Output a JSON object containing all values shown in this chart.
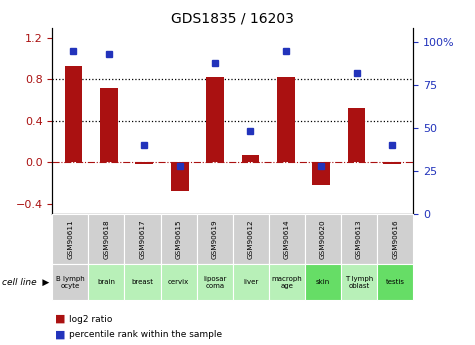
{
  "title": "GDS1835 / 16203",
  "gsm_labels": [
    "GSM90611",
    "GSM90618",
    "GSM90617",
    "GSM90615",
    "GSM90619",
    "GSM90612",
    "GSM90614",
    "GSM90620",
    "GSM90613",
    "GSM90616"
  ],
  "cell_labels": [
    "B lymph\nocyte",
    "brain",
    "breast",
    "cervix",
    "liposar\ncoma",
    "liver",
    "macroph\nage",
    "skin",
    "T lymph\noblast",
    "testis"
  ],
  "cell_colors": [
    "#d0d0d0",
    "#b8f0b8",
    "#b8f0b8",
    "#b8f0b8",
    "#b8f0b8",
    "#b8f0b8",
    "#b8f0b8",
    "#66dd66",
    "#b8f0b8",
    "#66dd66"
  ],
  "log2_ratio": [
    0.93,
    0.72,
    -0.02,
    -0.28,
    0.82,
    0.07,
    0.82,
    -0.22,
    0.52,
    -0.02
  ],
  "pct_rank": [
    95,
    93,
    40,
    28,
    88,
    48,
    95,
    28,
    82,
    40
  ],
  "bar_color": "#aa1111",
  "dot_color": "#2233bb",
  "ylim_left": [
    -0.5,
    1.3
  ],
  "ylim_right": [
    0,
    108.33
  ],
  "yticks_left": [
    -0.4,
    0.0,
    0.4,
    0.8,
    1.2
  ],
  "yticks_right": [
    0,
    25,
    50,
    75,
    100
  ]
}
